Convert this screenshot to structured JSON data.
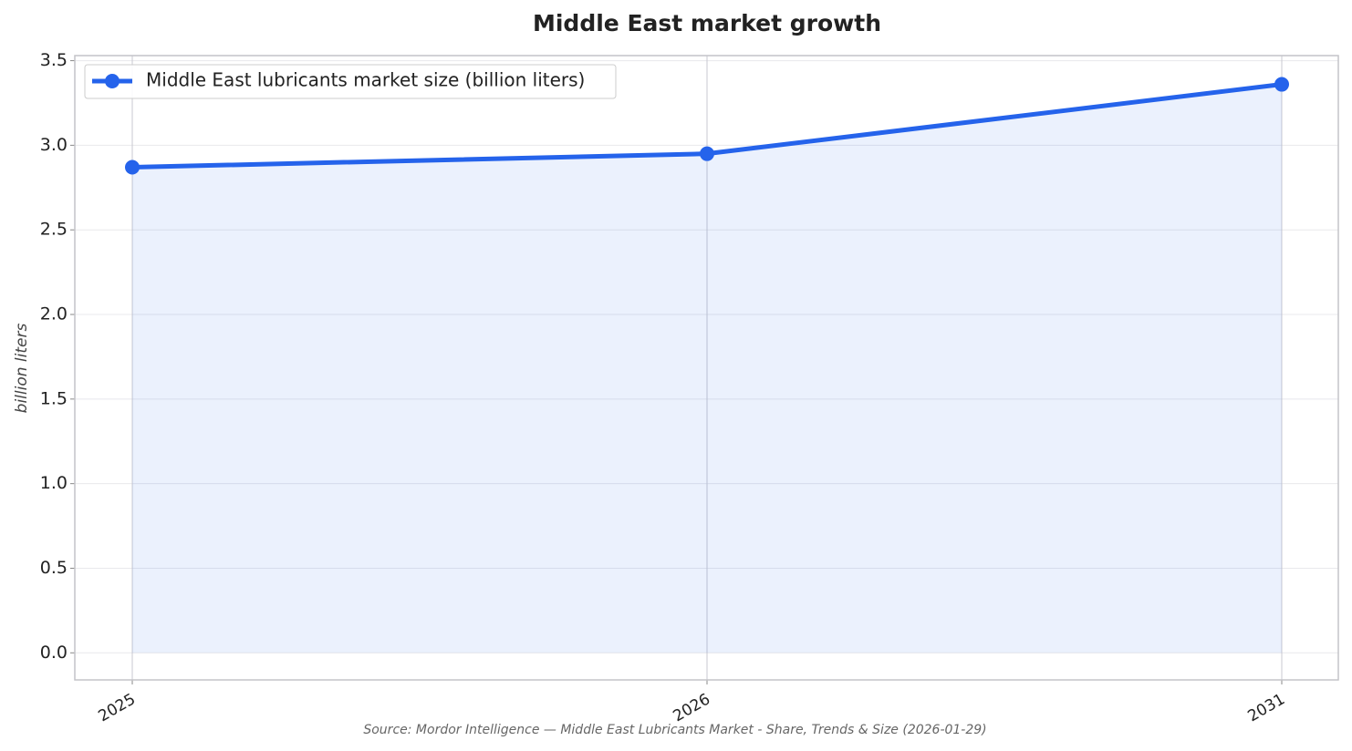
{
  "chart_data": {
    "type": "line",
    "title": "Middle East market growth",
    "y_label": "billion liters",
    "source": "Source: Mordor Intelligence — Middle East Lubricants Market - Share, Trends & Size (2026-01-29)",
    "categories": [
      "2025",
      "2026",
      "2031"
    ],
    "series": [
      {
        "name": "Middle East lubricants market size (billion liters)",
        "color": "#2563eb",
        "values": [
          2.87,
          2.95,
          3.36
        ]
      }
    ],
    "ylim": [
      -0.16,
      3.53
    ],
    "yticks": [
      {
        "value": 0,
        "label": "0.0"
      },
      0.5,
      {
        "value": 1,
        "label": "1.0"
      },
      1.5,
      {
        "value": 2,
        "label": "2.0"
      },
      2.5,
      {
        "value": 3,
        "label": "3.0"
      },
      3.5
    ],
    "grid": true,
    "fill_area": true,
    "legend": "upper left"
  }
}
